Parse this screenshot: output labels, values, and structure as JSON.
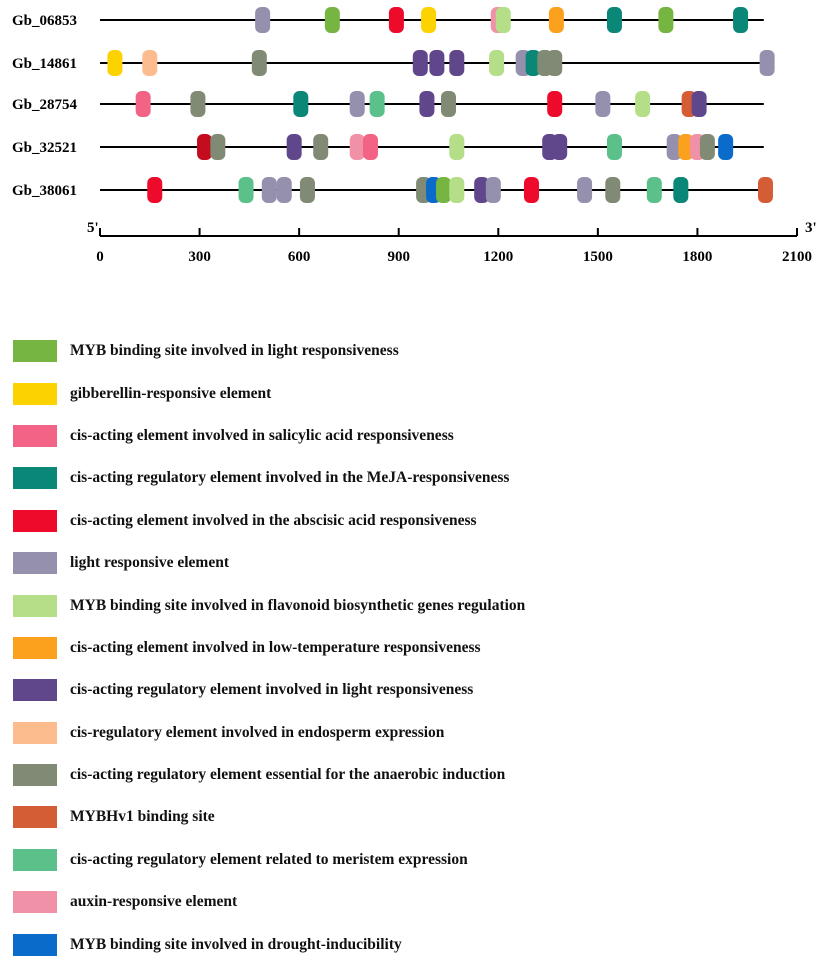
{
  "chart_data": {
    "type": "diagram",
    "axis": {
      "min": 0,
      "max": 2100,
      "ticks": [
        0,
        300,
        600,
        900,
        1200,
        1500,
        1800,
        2100
      ],
      "start_label": "5'",
      "end_label": "3'"
    },
    "genes": [
      {
        "name": "Gb_06853",
        "length": 2000,
        "elements": [
          {
            "pos": 490,
            "color": "#9590ad"
          },
          {
            "pos": 700,
            "color": "#76b541"
          },
          {
            "pos": 893,
            "color": "#ee0a2b"
          },
          {
            "pos": 990,
            "color": "#fdd201"
          },
          {
            "pos": 1200,
            "color": "#f191a7"
          },
          {
            "pos": 1215,
            "color": "#b4de88"
          },
          {
            "pos": 1375,
            "color": "#fba11d"
          },
          {
            "pos": 1550,
            "color": "#0b8778"
          },
          {
            "pos": 1705,
            "color": "#76b541"
          },
          {
            "pos": 1930,
            "color": "#0b8778"
          }
        ]
      },
      {
        "name": "Gb_14861",
        "length": 2010,
        "elements": [
          {
            "pos": 45,
            "color": "#fdd201"
          },
          {
            "pos": 150,
            "color": "#fdbc8d"
          },
          {
            "pos": 480,
            "color": "#808a74"
          },
          {
            "pos": 965,
            "color": "#60468a"
          },
          {
            "pos": 1015,
            "color": "#60468a"
          },
          {
            "pos": 1075,
            "color": "#60468a"
          },
          {
            "pos": 1195,
            "color": "#b4de88"
          },
          {
            "pos": 1275,
            "color": "#9590ad"
          },
          {
            "pos": 1305,
            "color": "#0b8778"
          },
          {
            "pos": 1340,
            "color": "#808a74"
          },
          {
            "pos": 1370,
            "color": "#808a74"
          },
          {
            "pos": 2010,
            "color": "#9590ad"
          }
        ]
      },
      {
        "name": "Gb_28754",
        "length": 2000,
        "elements": [
          {
            "pos": 130,
            "color": "#f26386"
          },
          {
            "pos": 295,
            "color": "#808a74"
          },
          {
            "pos": 605,
            "color": "#0b8778"
          },
          {
            "pos": 775,
            "color": "#9590ad"
          },
          {
            "pos": 835,
            "color": "#5bc089"
          },
          {
            "pos": 985,
            "color": "#60468a"
          },
          {
            "pos": 1050,
            "color": "#808a74"
          },
          {
            "pos": 1370,
            "color": "#ee0a2b"
          },
          {
            "pos": 1515,
            "color": "#9590ad"
          },
          {
            "pos": 1635,
            "color": "#b4de88"
          },
          {
            "pos": 1775,
            "color": "#d45d36"
          },
          {
            "pos": 1805,
            "color": "#60468a"
          }
        ]
      },
      {
        "name": "Gb_32521",
        "length": 2000,
        "elements": [
          {
            "pos": 315,
            "color": "#c40c1f"
          },
          {
            "pos": 355,
            "color": "#808a74"
          },
          {
            "pos": 585,
            "color": "#60468a"
          },
          {
            "pos": 665,
            "color": "#808a74"
          },
          {
            "pos": 775,
            "color": "#f191a7"
          },
          {
            "pos": 815,
            "color": "#f26386"
          },
          {
            "pos": 1075,
            "color": "#b4de88"
          },
          {
            "pos": 1355,
            "color": "#60468a"
          },
          {
            "pos": 1385,
            "color": "#60468a"
          },
          {
            "pos": 1550,
            "color": "#5bc089"
          },
          {
            "pos": 1730,
            "color": "#9590ad"
          },
          {
            "pos": 1765,
            "color": "#fba11d"
          },
          {
            "pos": 1800,
            "color": "#f191a7"
          },
          {
            "pos": 1830,
            "color": "#808a74"
          },
          {
            "pos": 1885,
            "color": "#0a6bcb"
          }
        ]
      },
      {
        "name": "Gb_38061",
        "length": 2000,
        "elements": [
          {
            "pos": 165,
            "color": "#ee0a2b"
          },
          {
            "pos": 440,
            "color": "#5bc089"
          },
          {
            "pos": 510,
            "color": "#9590ad"
          },
          {
            "pos": 555,
            "color": "#9590ad"
          },
          {
            "pos": 625,
            "color": "#808a74"
          },
          {
            "pos": 975,
            "color": "#808a74"
          },
          {
            "pos": 1005,
            "color": "#0a6bcb"
          },
          {
            "pos": 1035,
            "color": "#76b541"
          },
          {
            "pos": 1075,
            "color": "#b4de88"
          },
          {
            "pos": 1150,
            "color": "#60468a"
          },
          {
            "pos": 1185,
            "color": "#9590ad"
          },
          {
            "pos": 1300,
            "color": "#ee0a2b"
          },
          {
            "pos": 1460,
            "color": "#9590ad"
          },
          {
            "pos": 1545,
            "color": "#808a74"
          },
          {
            "pos": 1670,
            "color": "#5bc089"
          },
          {
            "pos": 1750,
            "color": "#0b8778"
          },
          {
            "pos": 2005,
            "color": "#d45d36"
          }
        ]
      }
    ]
  },
  "legend": [
    {
      "label": "MYB binding site involved in light responsiveness",
      "color": "#76b541"
    },
    {
      "label": "gibberellin-responsive element",
      "color": "#fdd201"
    },
    {
      "label": "cis-acting element involved in salicylic acid responsiveness",
      "color": "#f26386"
    },
    {
      "label": "cis-acting regulatory element involved in the MeJA-responsiveness",
      "color": "#0b8778"
    },
    {
      "label": "cis-acting element involved in the abscisic acid responsiveness",
      "color": "#ee0a2b"
    },
    {
      "label": "light responsive element",
      "color": "#9590ad"
    },
    {
      "label": "MYB binding site involved in flavonoid biosynthetic genes regulation",
      "color": "#b4de88"
    },
    {
      "label": "cis-acting element involved in low-temperature responsiveness",
      "color": "#fba11d"
    },
    {
      "label": "cis-acting regulatory element involved in light responsiveness",
      "color": "#60468a"
    },
    {
      "label": "cis-regulatory element involved in endosperm expression",
      "color": "#fdbc8d"
    },
    {
      "label": "cis-acting regulatory element essential for the anaerobic induction",
      "color": "#808a74"
    },
    {
      "label": "MYBHv1 binding site",
      "color": "#d45d36"
    },
    {
      "label": "cis-acting regulatory element related to meristem expression",
      "color": "#5bc089"
    },
    {
      "label": "auxin-responsive element",
      "color": "#f191a7"
    },
    {
      "label": "MYB binding site involved in drought-inducibility",
      "color": "#0a6bcb"
    }
  ]
}
